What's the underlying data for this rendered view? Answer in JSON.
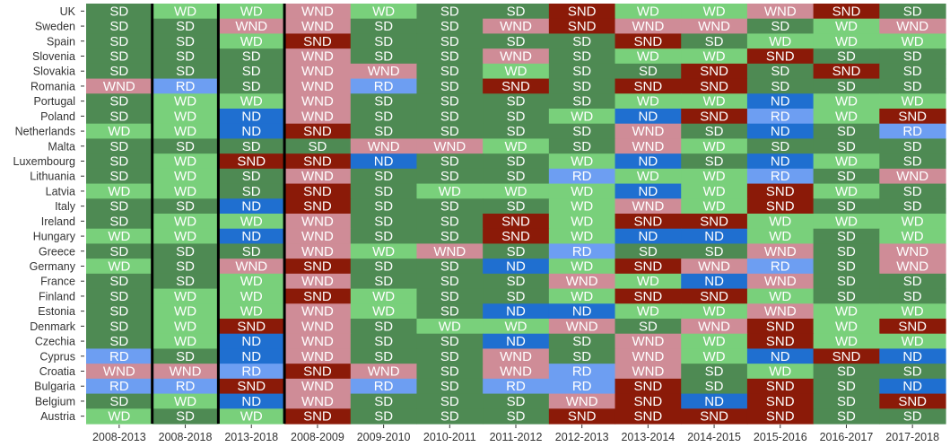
{
  "chart_data": {
    "type": "heatmap",
    "title": "",
    "xlabel": "",
    "ylabel": "",
    "columns": [
      "2008-2013",
      "2008-2018",
      "2013-2018",
      "2008-2009",
      "2009-2010",
      "2010-2011",
      "2011-2012",
      "2012-2013",
      "2013-2014",
      "2014-2015",
      "2015-2016",
      "2016-2017",
      "2017-2018"
    ],
    "rows": [
      "UK",
      "Sweden",
      "Spain",
      "Slovenia",
      "Slovakia",
      "Romania",
      "Portugal",
      "Poland",
      "Netherlands",
      "Malta",
      "Luxembourg",
      "Lithuania",
      "Latvia",
      "Italy",
      "Ireland",
      "Hungary",
      "Greece",
      "Germany",
      "France",
      "Finland",
      "Estonia",
      "Denmark",
      "Czechia",
      "Cyprus",
      "Croatia",
      "Bulgaria",
      "Belgium",
      "Austria"
    ],
    "values": [
      [
        "SD",
        "WD",
        "WD",
        "WND",
        "WD",
        "SD",
        "SD",
        "SND",
        "WD",
        "WD",
        "WND",
        "SND",
        "SD"
      ],
      [
        "SD",
        "SD",
        "WND",
        "WND",
        "SD",
        "SD",
        "WND",
        "SND",
        "WND",
        "WND",
        "SD",
        "WD",
        "WND"
      ],
      [
        "SD",
        "SD",
        "WD",
        "SND",
        "SD",
        "SD",
        "SD",
        "SD",
        "SND",
        "SD",
        "WD",
        "WD",
        "WD"
      ],
      [
        "SD",
        "SD",
        "SD",
        "WND",
        "SD",
        "SD",
        "WND",
        "SD",
        "WD",
        "WD",
        "SND",
        "SD",
        "SD"
      ],
      [
        "SD",
        "SD",
        "SD",
        "WND",
        "WND",
        "SD",
        "WD",
        "SD",
        "SD",
        "SND",
        "SD",
        "SND",
        "SD"
      ],
      [
        "WND",
        "RD",
        "SD",
        "WND",
        "RD",
        "SD",
        "SND",
        "SD",
        "SND",
        "SND",
        "SD",
        "SD",
        "SD"
      ],
      [
        "SD",
        "WD",
        "WD",
        "WND",
        "SD",
        "SD",
        "SD",
        "SD",
        "WD",
        "WD",
        "ND",
        "WD",
        "WD"
      ],
      [
        "SD",
        "WD",
        "ND",
        "WND",
        "SD",
        "SD",
        "SD",
        "WD",
        "ND",
        "SND",
        "RD",
        "WD",
        "SND"
      ],
      [
        "WD",
        "WD",
        "ND",
        "SND",
        "SD",
        "SD",
        "SD",
        "SD",
        "WND",
        "SD",
        "ND",
        "SD",
        "RD"
      ],
      [
        "SD",
        "SD",
        "SD",
        "SD",
        "WND",
        "WND",
        "WD",
        "SD",
        "WND",
        "WD",
        "SD",
        "SD",
        "SD"
      ],
      [
        "SD",
        "WD",
        "SND",
        "SND",
        "ND",
        "SD",
        "SD",
        "WD",
        "ND",
        "SD",
        "ND",
        "WD",
        "SD"
      ],
      [
        "SD",
        "WD",
        "SD",
        "WND",
        "SD",
        "SD",
        "SD",
        "RD",
        "WD",
        "WD",
        "RD",
        "SD",
        "WND"
      ],
      [
        "WD",
        "WD",
        "SD",
        "SND",
        "SD",
        "WD",
        "WD",
        "WD",
        "ND",
        "WD",
        "SND",
        "WD",
        "SD"
      ],
      [
        "SD",
        "SD",
        "ND",
        "SND",
        "SD",
        "SD",
        "SD",
        "WD",
        "WND",
        "WD",
        "SND",
        "SD",
        "SD"
      ],
      [
        "SD",
        "WD",
        "WD",
        "WND",
        "SD",
        "SD",
        "SND",
        "WD",
        "SND",
        "SND",
        "WD",
        "WD",
        "WD"
      ],
      [
        "WD",
        "WD",
        "ND",
        "WND",
        "SD",
        "SD",
        "SND",
        "WD",
        "ND",
        "ND",
        "WD",
        "SD",
        "WD"
      ],
      [
        "SD",
        "SD",
        "SD",
        "WND",
        "WD",
        "WND",
        "SD",
        "RD",
        "SD",
        "SD",
        "WND",
        "SD",
        "WND"
      ],
      [
        "WD",
        "SD",
        "WND",
        "SND",
        "SD",
        "SD",
        "ND",
        "WD",
        "SND",
        "WND",
        "RD",
        "SD",
        "WND"
      ],
      [
        "SD",
        "SD",
        "WD",
        "WND",
        "SD",
        "SD",
        "SD",
        "WND",
        "WD",
        "ND",
        "WND",
        "SD",
        "SD"
      ],
      [
        "SD",
        "WD",
        "WD",
        "SND",
        "WD",
        "SD",
        "SD",
        "WD",
        "SND",
        "SND",
        "WD",
        "SD",
        "SD"
      ],
      [
        "SD",
        "WD",
        "WD",
        "WND",
        "WD",
        "SD",
        "ND",
        "ND",
        "WD",
        "WD",
        "WND",
        "WD",
        "WD"
      ],
      [
        "SD",
        "WD",
        "SND",
        "WND",
        "SD",
        "WD",
        "WD",
        "WND",
        "SD",
        "WND",
        "SND",
        "WD",
        "SND"
      ],
      [
        "SD",
        "WD",
        "ND",
        "WND",
        "SD",
        "SD",
        "ND",
        "SD",
        "WND",
        "WD",
        "SND",
        "WD",
        "WD"
      ],
      [
        "RD",
        "SD",
        "ND",
        "WND",
        "SD",
        "SD",
        "WND",
        "SD",
        "WND",
        "WD",
        "ND",
        "SND",
        "ND"
      ],
      [
        "WND",
        "WND",
        "RD",
        "SND",
        "WND",
        "SD",
        "WND",
        "RD",
        "WND",
        "SD",
        "WD",
        "SD",
        "SD"
      ],
      [
        "RD",
        "RD",
        "SND",
        "WND",
        "RD",
        "SD",
        "RD",
        "RD",
        "SND",
        "SD",
        "SND",
        "SD",
        "ND"
      ],
      [
        "SD",
        "WD",
        "ND",
        "WND",
        "SD",
        "SD",
        "SD",
        "WND",
        "SND",
        "ND",
        "SND",
        "SD",
        "SND"
      ],
      [
        "WD",
        "SD",
        "WD",
        "SND",
        "SD",
        "SD",
        "SD",
        "SND",
        "SND",
        "SND",
        "SND",
        "SD",
        "SD"
      ]
    ],
    "colors": {
      "SD": "#4e8a53",
      "WD": "#79d07b",
      "SND": "#8b1a08",
      "WND": "#cf8c97",
      "ND": "#1f6fd0",
      "RD": "#6d9ef2"
    },
    "separators_after_columns": [
      0,
      1,
      2
    ],
    "legend": "none",
    "grid": false
  }
}
